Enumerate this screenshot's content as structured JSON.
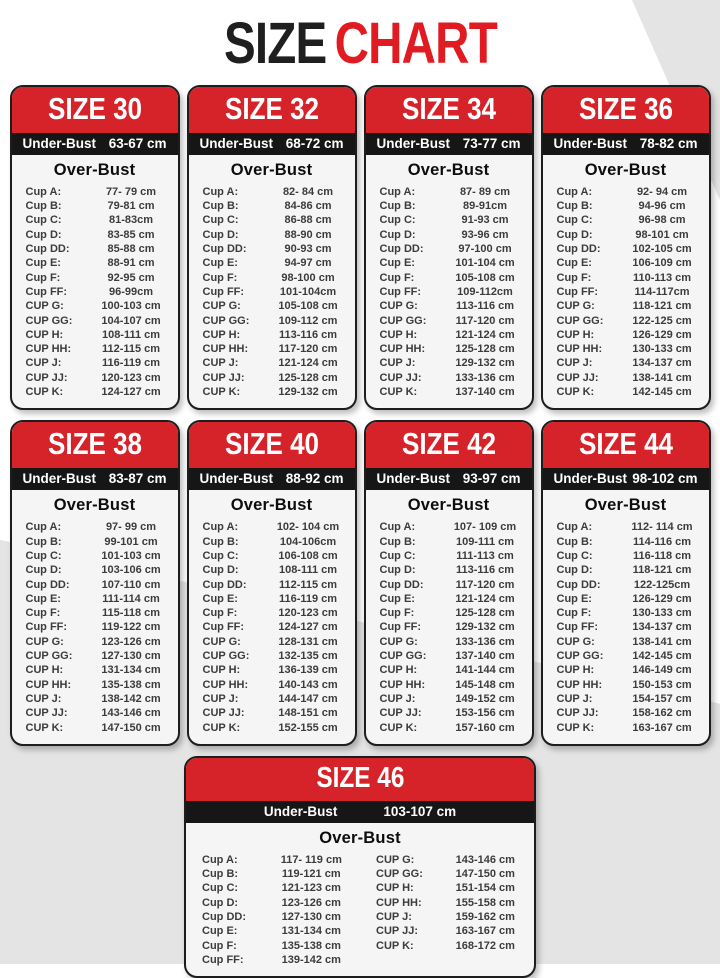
{
  "title": {
    "word1": "SIZE",
    "word2": "CHART"
  },
  "labels": {
    "under_bust": "Under-Bust",
    "over_bust": "Over-Bust"
  },
  "colors": {
    "accent_red": "#d6232a",
    "title_red": "#e01b22",
    "title_black": "#1f1f1f",
    "bar_black": "#161616",
    "card_bg": "#f5f5f5",
    "page_gray": "#e4e4e4"
  },
  "sizes": [
    {
      "name": "SIZE 30",
      "under_bust": "63-67 cm",
      "rows": [
        {
          "label": "Cup A:",
          "value": "77- 79 cm"
        },
        {
          "label": "Cup B:",
          "value": "79-81 cm"
        },
        {
          "label": "Cup C:",
          "value": "81-83cm"
        },
        {
          "label": "Cup D:",
          "value": "83-85 cm"
        },
        {
          "label": "Cup DD:",
          "value": "85-88 cm"
        },
        {
          "label": "Cup E:",
          "value": "88-91 cm"
        },
        {
          "label": "Cup F:",
          "value": "92-95 cm"
        },
        {
          "label": "Cup FF:",
          "value": "96-99cm"
        },
        {
          "label": "CUP G:",
          "value": "100-103 cm"
        },
        {
          "label": "CUP GG:",
          "value": "104-107 cm"
        },
        {
          "label": "CUP H:",
          "value": "108-111 cm"
        },
        {
          "label": "CUP HH:",
          "value": "112-115 cm"
        },
        {
          "label": "CUP J:",
          "value": "116-119 cm"
        },
        {
          "label": "CUP JJ:",
          "value": "120-123 cm"
        },
        {
          "label": "CUP K:",
          "value": "124-127 cm"
        }
      ]
    },
    {
      "name": "SIZE 32",
      "under_bust": "68-72 cm",
      "rows": [
        {
          "label": "Cup A:",
          "value": "82- 84 cm"
        },
        {
          "label": "Cup B:",
          "value": "84-86 cm"
        },
        {
          "label": "Cup C:",
          "value": "86-88 cm"
        },
        {
          "label": "Cup D:",
          "value": "88-90 cm"
        },
        {
          "label": "Cup DD:",
          "value": "90-93 cm"
        },
        {
          "label": "Cup E:",
          "value": "94-97 cm"
        },
        {
          "label": "Cup F:",
          "value": "98-100 cm"
        },
        {
          "label": "Cup FF:",
          "value": "101-104cm"
        },
        {
          "label": "CUP G:",
          "value": "105-108 cm"
        },
        {
          "label": "CUP GG:",
          "value": "109-112 cm"
        },
        {
          "label": "CUP H:",
          "value": "113-116 cm"
        },
        {
          "label": "CUP HH:",
          "value": "117-120 cm"
        },
        {
          "label": "CUP J:",
          "value": "121-124 cm"
        },
        {
          "label": "CUP JJ:",
          "value": "125-128 cm"
        },
        {
          "label": "CUP K:",
          "value": "129-132 cm"
        }
      ]
    },
    {
      "name": "SIZE 34",
      "under_bust": "73-77 cm",
      "rows": [
        {
          "label": "Cup A:",
          "value": "87- 89 cm"
        },
        {
          "label": "Cup B:",
          "value": "89-91cm"
        },
        {
          "label": "Cup C:",
          "value": "91-93 cm"
        },
        {
          "label": "Cup D:",
          "value": "93-96 cm"
        },
        {
          "label": "Cup DD:",
          "value": "97-100 cm"
        },
        {
          "label": "Cup E:",
          "value": "101-104 cm"
        },
        {
          "label": "Cup F:",
          "value": "105-108 cm"
        },
        {
          "label": "Cup FF:",
          "value": "109-112cm"
        },
        {
          "label": "CUP G:",
          "value": "113-116 cm"
        },
        {
          "label": "CUP GG:",
          "value": "117-120 cm"
        },
        {
          "label": "CUP H:",
          "value": "121-124 cm"
        },
        {
          "label": "CUP HH:",
          "value": "125-128 cm"
        },
        {
          "label": "CUP J:",
          "value": "129-132 cm"
        },
        {
          "label": "CUP JJ:",
          "value": "133-136 cm"
        },
        {
          "label": "CUP K:",
          "value": "137-140 cm"
        }
      ]
    },
    {
      "name": "SIZE 36",
      "under_bust": "78-82 cm",
      "rows": [
        {
          "label": "Cup A:",
          "value": "92- 94 cm"
        },
        {
          "label": "Cup B:",
          "value": "94-96 cm"
        },
        {
          "label": "Cup C:",
          "value": "96-98 cm"
        },
        {
          "label": "Cup D:",
          "value": "98-101 cm"
        },
        {
          "label": "Cup DD:",
          "value": "102-105 cm"
        },
        {
          "label": "Cup E:",
          "value": "106-109 cm"
        },
        {
          "label": "Cup F:",
          "value": "110-113 cm"
        },
        {
          "label": "Cup FF:",
          "value": "114-117cm"
        },
        {
          "label": "CUP G:",
          "value": "118-121 cm"
        },
        {
          "label": "CUP GG:",
          "value": "122-125 cm"
        },
        {
          "label": "CUP H:",
          "value": "126-129 cm"
        },
        {
          "label": "CUP HH:",
          "value": "130-133 cm"
        },
        {
          "label": "CUP J:",
          "value": "134-137 cm"
        },
        {
          "label": "CUP JJ:",
          "value": "138-141 cm"
        },
        {
          "label": "CUP K:",
          "value": "142-145 cm"
        }
      ]
    },
    {
      "name": "SIZE 38",
      "under_bust": "83-87 cm",
      "rows": [
        {
          "label": "Cup A:",
          "value": "97- 99 cm"
        },
        {
          "label": "Cup B:",
          "value": "99-101 cm"
        },
        {
          "label": "Cup C:",
          "value": "101-103 cm"
        },
        {
          "label": "Cup D:",
          "value": "103-106 cm"
        },
        {
          "label": "Cup DD:",
          "value": "107-110 cm"
        },
        {
          "label": "Cup E:",
          "value": "111-114 cm"
        },
        {
          "label": "Cup F:",
          "value": "115-118 cm"
        },
        {
          "label": "Cup FF:",
          "value": "119-122 cm"
        },
        {
          "label": "CUP G:",
          "value": "123-126 cm"
        },
        {
          "label": "CUP GG:",
          "value": "127-130 cm"
        },
        {
          "label": "CUP H:",
          "value": "131-134 cm"
        },
        {
          "label": "CUP HH:",
          "value": "135-138 cm"
        },
        {
          "label": "CUP J:",
          "value": "138-142 cm"
        },
        {
          "label": "CUP JJ:",
          "value": "143-146 cm"
        },
        {
          "label": "CUP K:",
          "value": "147-150 cm"
        }
      ]
    },
    {
      "name": "SIZE 40",
      "under_bust": "88-92 cm",
      "rows": [
        {
          "label": "Cup A:",
          "value": "102- 104 cm"
        },
        {
          "label": "Cup B:",
          "value": "104-106cm"
        },
        {
          "label": "Cup C:",
          "value": "106-108 cm"
        },
        {
          "label": "Cup D:",
          "value": "108-111 cm"
        },
        {
          "label": "Cup DD:",
          "value": "112-115 cm"
        },
        {
          "label": "Cup E:",
          "value": "116-119 cm"
        },
        {
          "label": "Cup F:",
          "value": "120-123 cm"
        },
        {
          "label": "Cup FF:",
          "value": "124-127 cm"
        },
        {
          "label": "CUP G:",
          "value": "128-131 cm"
        },
        {
          "label": "CUP GG:",
          "value": "132-135 cm"
        },
        {
          "label": "CUP H:",
          "value": "136-139 cm"
        },
        {
          "label": "CUP HH:",
          "value": "140-143 cm"
        },
        {
          "label": "CUP J:",
          "value": "144-147 cm"
        },
        {
          "label": "CUP JJ:",
          "value": "148-151 cm"
        },
        {
          "label": "CUP K:",
          "value": "152-155 cm"
        }
      ]
    },
    {
      "name": "SIZE 42",
      "under_bust": "93-97 cm",
      "rows": [
        {
          "label": "Cup A:",
          "value": "107- 109 cm"
        },
        {
          "label": "Cup B:",
          "value": "109-111 cm"
        },
        {
          "label": "Cup C:",
          "value": "111-113 cm"
        },
        {
          "label": "Cup D:",
          "value": "113-116 cm"
        },
        {
          "label": "Cup DD:",
          "value": "117-120 cm"
        },
        {
          "label": "Cup E:",
          "value": "121-124 cm"
        },
        {
          "label": "Cup F:",
          "value": "125-128 cm"
        },
        {
          "label": "Cup FF:",
          "value": "129-132 cm"
        },
        {
          "label": "CUP G:",
          "value": "133-136 cm"
        },
        {
          "label": "CUP GG:",
          "value": "137-140 cm"
        },
        {
          "label": "CUP H:",
          "value": "141-144 cm"
        },
        {
          "label": "CUP HH:",
          "value": "145-148 cm"
        },
        {
          "label": "CUP J:",
          "value": "149-152 cm"
        },
        {
          "label": "CUP JJ:",
          "value": "153-156 cm"
        },
        {
          "label": "CUP K:",
          "value": "157-160 cm"
        }
      ]
    },
    {
      "name": "SIZE 44",
      "under_bust": "98-102 cm",
      "rows": [
        {
          "label": "Cup A:",
          "value": "112- 114 cm"
        },
        {
          "label": "Cup B:",
          "value": "114-116 cm"
        },
        {
          "label": "Cup C:",
          "value": "116-118 cm"
        },
        {
          "label": "Cup D:",
          "value": "118-121 cm"
        },
        {
          "label": "Cup DD:",
          "value": "122-125cm"
        },
        {
          "label": "Cup E:",
          "value": "126-129 cm"
        },
        {
          "label": "Cup F:",
          "value": "130-133 cm"
        },
        {
          "label": "Cup FF:",
          "value": "134-137 cm"
        },
        {
          "label": "CUP G:",
          "value": "138-141 cm"
        },
        {
          "label": "CUP GG:",
          "value": "142-145 cm"
        },
        {
          "label": "CUP H:",
          "value": "146-149 cm"
        },
        {
          "label": "CUP HH:",
          "value": "150-153 cm"
        },
        {
          "label": "CUP J:",
          "value": "154-157 cm"
        },
        {
          "label": "CUP JJ:",
          "value": "158-162 cm"
        },
        {
          "label": "CUP K:",
          "value": "163-167 cm"
        }
      ]
    },
    {
      "name": "SIZE 46",
      "under_bust": "103-107 cm",
      "two_column": true,
      "rows": [
        {
          "label": "Cup A:",
          "value": "117- 119 cm"
        },
        {
          "label": "Cup B:",
          "value": "119-121 cm"
        },
        {
          "label": "Cup C:",
          "value": "121-123 cm"
        },
        {
          "label": "Cup D:",
          "value": "123-126 cm"
        },
        {
          "label": "Cup DD:",
          "value": "127-130 cm"
        },
        {
          "label": "Cup E:",
          "value": "131-134 cm"
        },
        {
          "label": "Cup F:",
          "value": "135-138 cm"
        },
        {
          "label": "Cup FF:",
          "value": "139-142 cm"
        },
        {
          "label": "CUP G:",
          "value": "143-146 cm"
        },
        {
          "label": "CUP GG:",
          "value": "147-150 cm"
        },
        {
          "label": "CUP H:",
          "value": "151-154 cm"
        },
        {
          "label": "CUP HH:",
          "value": "155-158 cm"
        },
        {
          "label": "CUP J:",
          "value": "159-162 cm"
        },
        {
          "label": "CUP JJ:",
          "value": "163-167 cm"
        },
        {
          "label": "CUP K:",
          "value": "168-172 cm"
        }
      ]
    }
  ]
}
